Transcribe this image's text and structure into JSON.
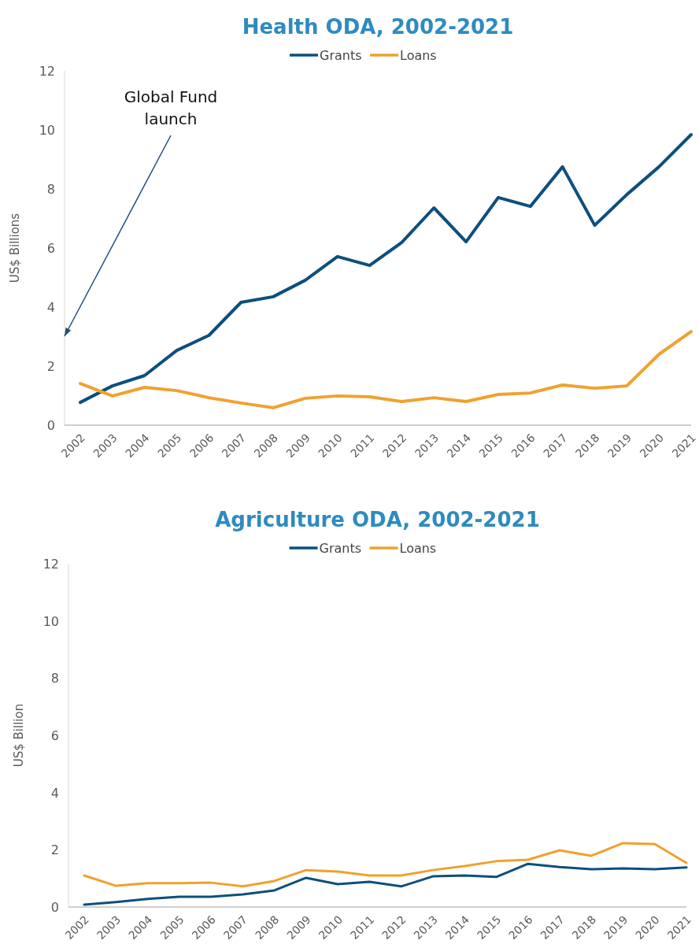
{
  "chart_data": [
    {
      "type": "line",
      "title": "Health ODA, 2002-2021",
      "ylabel": "US$ Billions",
      "categories": [
        "2002",
        "2003",
        "2004",
        "2005",
        "2006",
        "2007",
        "2008",
        "2009",
        "2010",
        "2011",
        "2012",
        "2013",
        "2014",
        "2015",
        "2016",
        "2017",
        "2018",
        "2019",
        "2020",
        "2021"
      ],
      "series": [
        {
          "name": "Grants",
          "color": "#0d4f7d",
          "values": [
            0.77,
            1.33,
            1.68,
            2.53,
            3.04,
            4.16,
            4.35,
            4.91,
            5.71,
            5.41,
            6.19,
            7.36,
            6.21,
            7.71,
            7.41,
            8.75,
            6.77,
            7.81,
            8.75,
            9.84
          ]
        },
        {
          "name": "Loans",
          "color": "#f0a12e",
          "values": [
            1.41,
            0.99,
            1.28,
            1.17,
            0.93,
            0.75,
            0.59,
            0.91,
            0.99,
            0.96,
            0.8,
            0.93,
            0.8,
            1.04,
            1.09,
            1.36,
            1.25,
            1.33,
            2.4,
            3.17
          ]
        }
      ],
      "ylim": [
        0,
        12
      ],
      "yticks": [
        0,
        2,
        4,
        6,
        8,
        10,
        12
      ],
      "grid": false,
      "legend": "top",
      "marker": "none",
      "line_style": "solid",
      "annotations": [
        "Global Fund launch"
      ]
    },
    {
      "type": "line",
      "title": "Agriculture ODA, 2002-2021",
      "ylabel": "US$ Billion",
      "categories": [
        "2002",
        "2003",
        "2004",
        "2005",
        "2006",
        "2007",
        "2008",
        "2009",
        "2010",
        "2011",
        "2012",
        "2013",
        "2014",
        "2015",
        "2016",
        "2017",
        "2018",
        "2019",
        "2020",
        "2021"
      ],
      "series": [
        {
          "name": "Grants",
          "color": "#0d4f7d",
          "values": [
            0.08,
            0.17,
            0.28,
            0.36,
            0.36,
            0.44,
            0.58,
            1.02,
            0.8,
            0.88,
            0.72,
            1.07,
            1.1,
            1.05,
            1.51,
            1.4,
            1.32,
            1.35,
            1.32,
            1.38
          ]
        },
        {
          "name": "Loans",
          "color": "#f0a12e",
          "values": [
            1.1,
            0.74,
            0.83,
            0.83,
            0.85,
            0.72,
            0.91,
            1.29,
            1.24,
            1.1,
            1.1,
            1.29,
            1.43,
            1.6,
            1.65,
            1.98,
            1.79,
            2.23,
            2.2,
            1.54
          ]
        }
      ],
      "ylim": [
        0,
        12
      ],
      "yticks": [
        0,
        2,
        4,
        6,
        8,
        10,
        12
      ],
      "grid": false,
      "legend": "top",
      "marker": "none",
      "line_style": "solid"
    }
  ]
}
